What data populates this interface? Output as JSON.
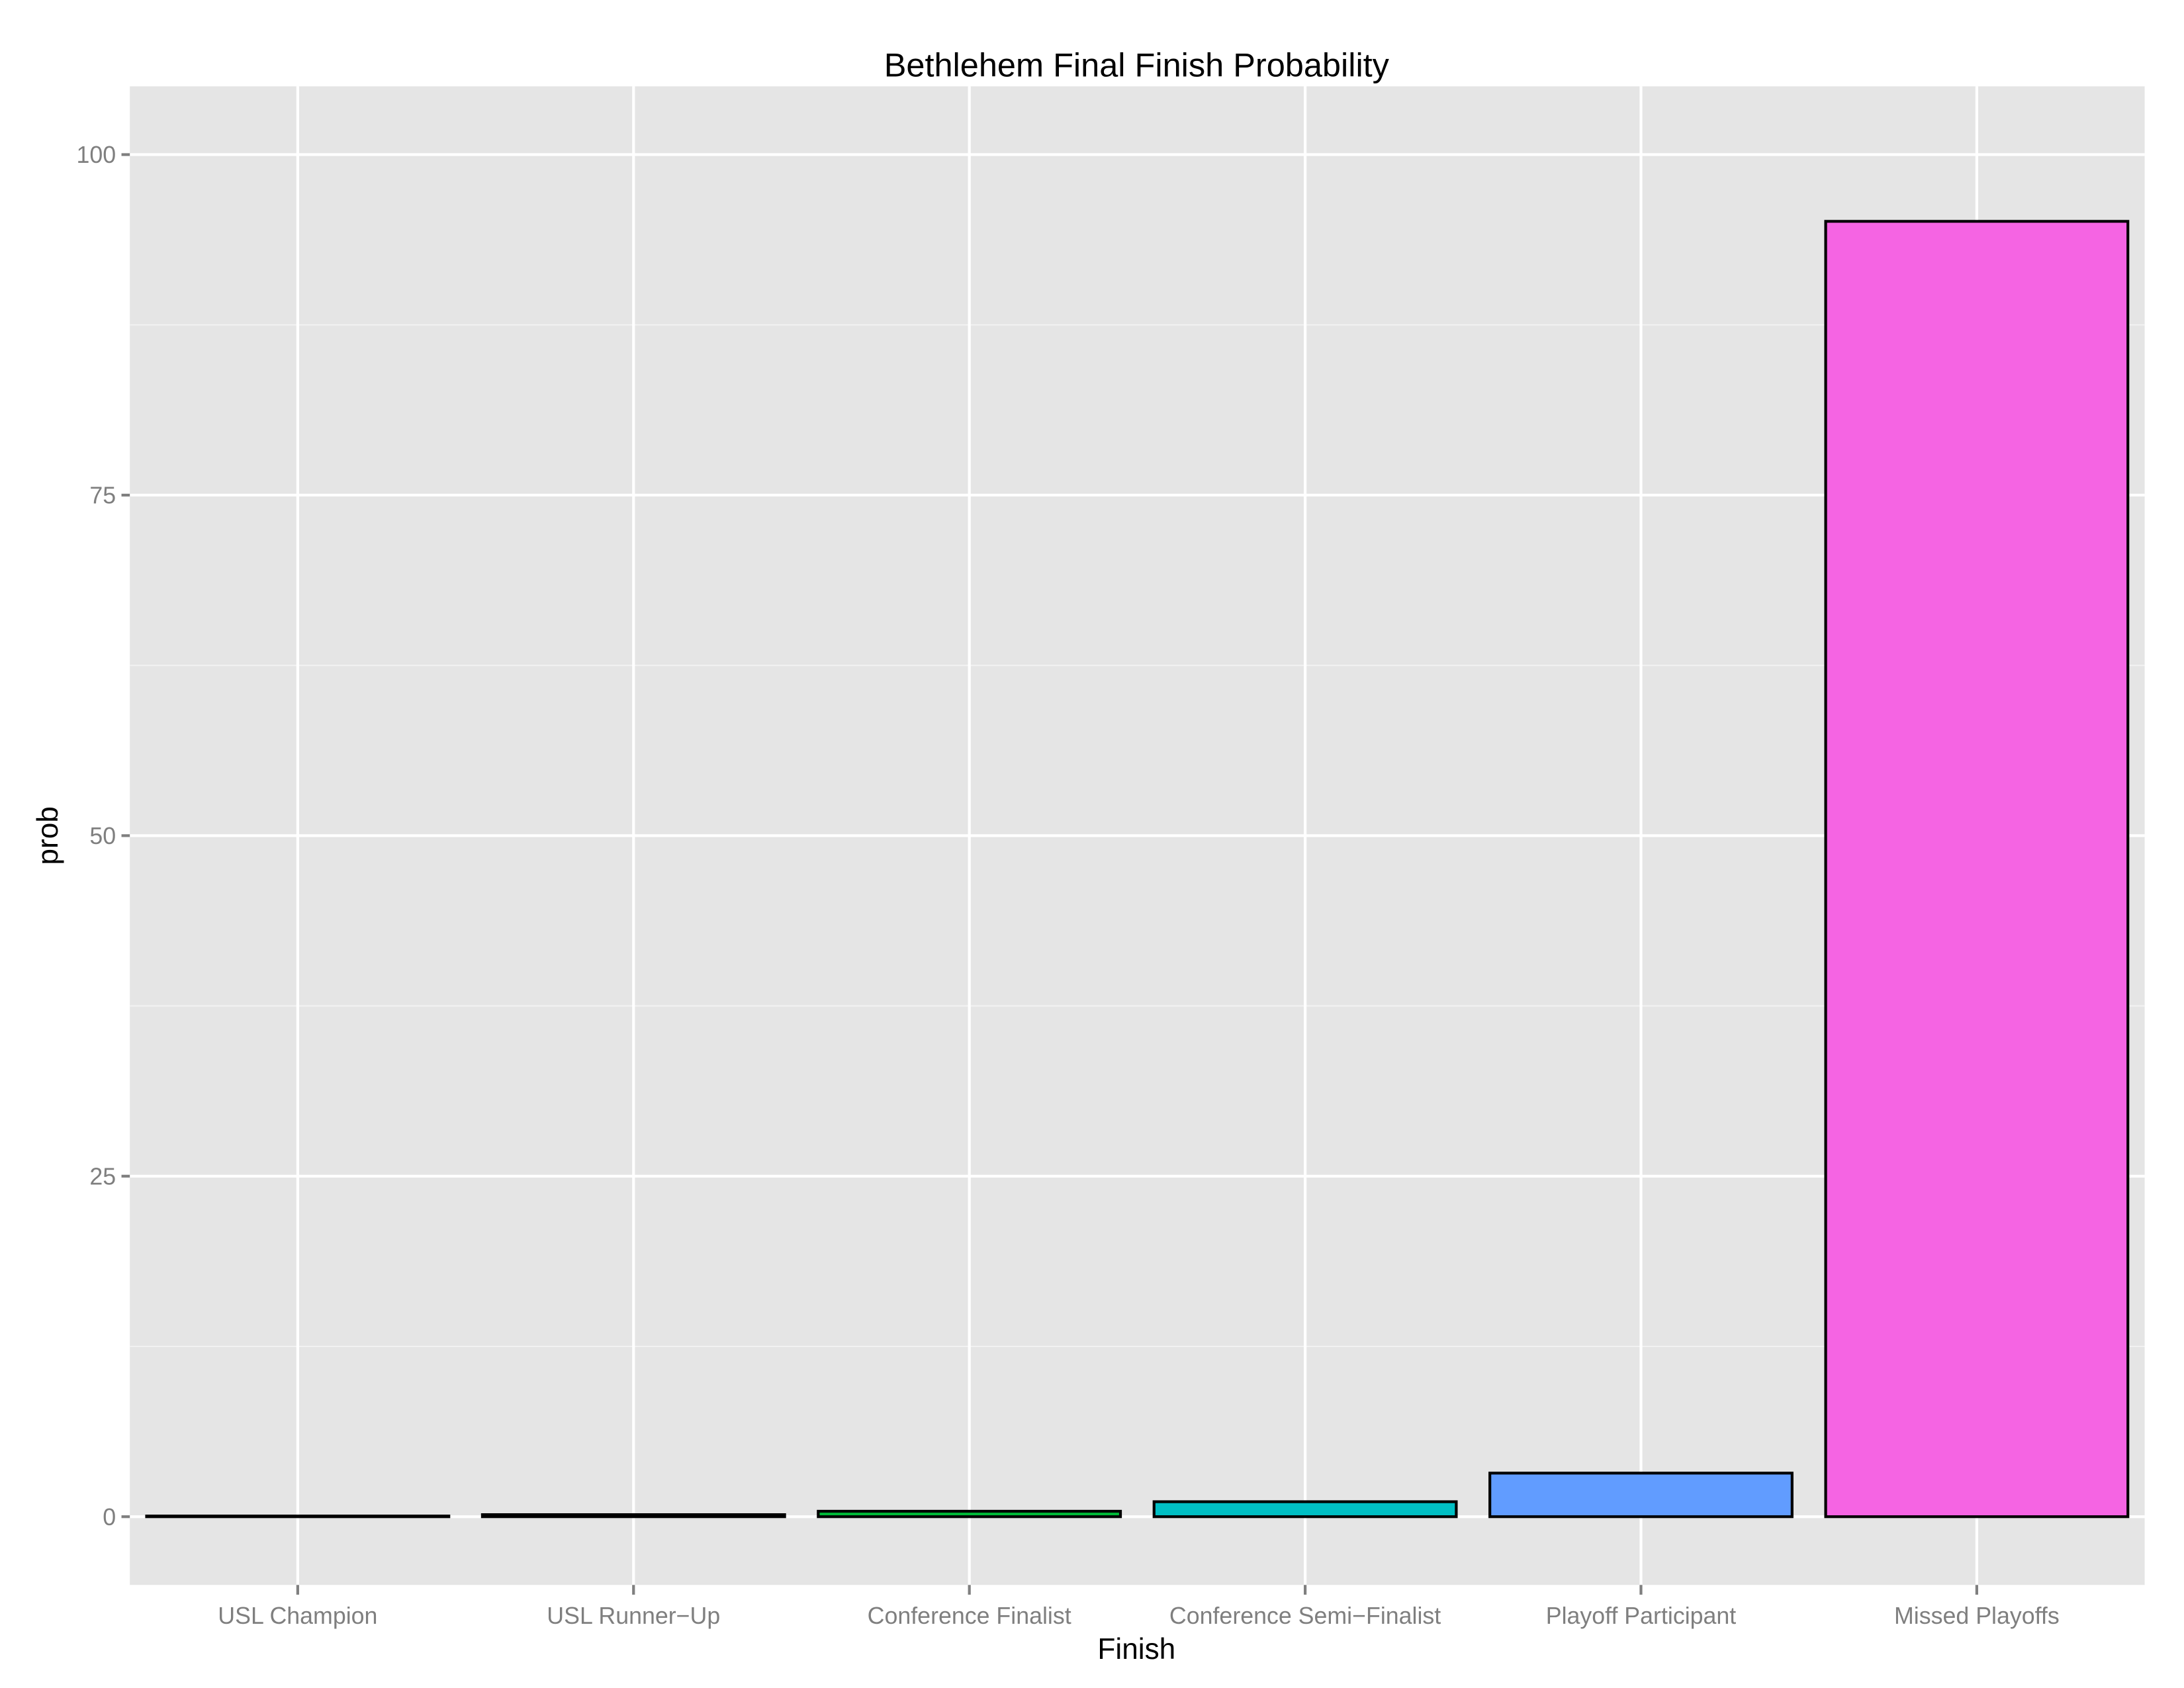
{
  "chart_data": {
    "type": "bar",
    "title": "Bethlehem Final Finish Probability",
    "xlabel": "Finish",
    "ylabel": "prob",
    "categories": [
      "USL Champion",
      "USL Runner−Up",
      "Conference Finalist",
      "Conference Semi−Finalist",
      "Playoff Participant",
      "Missed Playoffs"
    ],
    "values": [
      0.05,
      0.15,
      0.4,
      1.1,
      3.2,
      95.1
    ],
    "colors": [
      "#F8766D",
      "#B79F00",
      "#00BA38",
      "#00BFC4",
      "#619CFF",
      "#F564E3"
    ],
    "yticks": [
      "0",
      "25",
      "50",
      "75",
      "100"
    ],
    "ylim": [
      -5,
      105
    ],
    "grid": true,
    "legend": "none"
  }
}
